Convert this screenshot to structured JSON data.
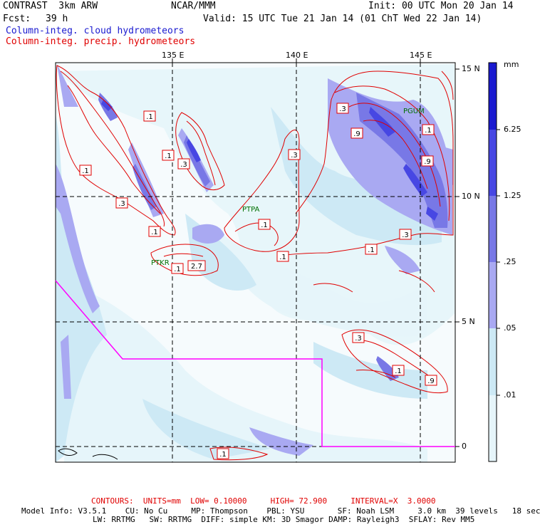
{
  "header": {
    "model": "CONTRAST  3km ARW",
    "org": "NCAR/MMM",
    "init": "Init: 00 UTC Mon 20 Jan 14",
    "fcst_label": "Fcst:",
    "fcst_value": "39 h",
    "valid": "Valid: 15 UTC Tue 21 Jan 14 (01 ChT Wed 22 Jan 14)",
    "field1": "Column-integ. cloud hydrometeors",
    "field2": "Column-integ. precip. hydrometeors"
  },
  "axes": {
    "lon_ticks": [
      "135 E",
      "140 E",
      "145 E"
    ],
    "lat_ticks": [
      "15 N",
      "10 N",
      "5 N",
      "0"
    ]
  },
  "colorbar": {
    "unit": "mm",
    "labels": [
      "6.25",
      "1.25",
      ".25",
      ".05",
      ".01"
    ],
    "colors": [
      "#1a1ad0",
      "#4747e3",
      "#7878e6",
      "#a9a9f2",
      "#cde9f5",
      "#e6f5fa",
      "#ffffff"
    ]
  },
  "stations": [
    "PTKR",
    "PTPA",
    "PGUM"
  ],
  "contour_labels": [
    ".1",
    ".1",
    ".1",
    ".3",
    ".3",
    ".1",
    ".1",
    ".1",
    "2.7",
    ".1",
    ".3",
    ".1",
    ".9",
    ".3",
    ".9",
    ".1",
    ".3",
    ".3",
    ".1",
    ".9",
    ".1"
  ],
  "footer": {
    "contours": "CONTOURS:  UNITS=mm  LOW= 0.10000     HIGH= 72.900     INTERVAL=X  3.0000",
    "line1": "Model Info: V3.5.1    CU: No Cu     MP: Thompson    PBL: YSU       SF: Noah LSM     3.0 km  39 levels   18 sec",
    "line2": "LW: RRTMG   SW: RRTMG  DIFF: simple KM: 3D Smagor DAMP: Rayleigh3  SFLAY: Rev MM5"
  },
  "colors": {
    "contour": "#e00000",
    "boundary": "#ff00ff",
    "grid": "#000000"
  }
}
